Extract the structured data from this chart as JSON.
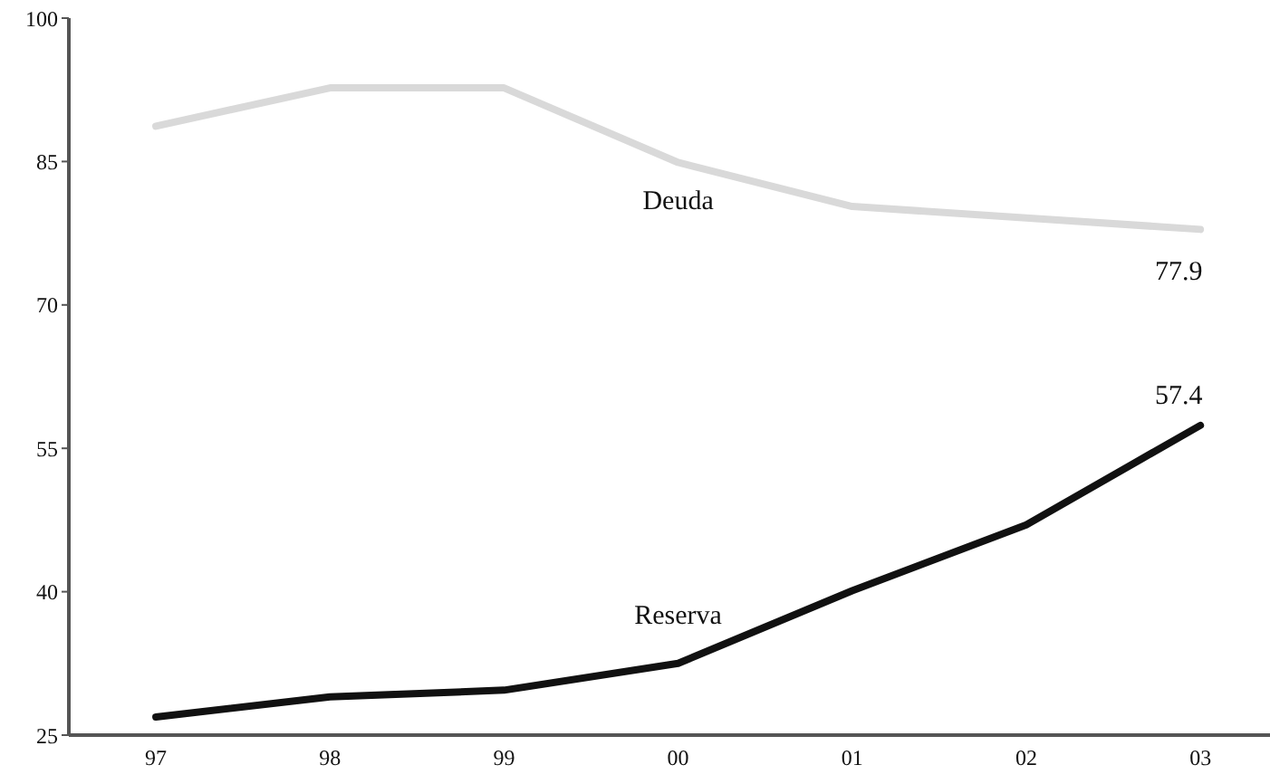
{
  "chart_data": {
    "type": "line",
    "categories": [
      "97",
      "98",
      "99",
      "00",
      "01",
      "02",
      "03"
    ],
    "series": [
      {
        "name": "Deuda",
        "color": "#d9d9d9",
        "values": [
          88.7,
          92.7,
          92.7,
          84.9,
          80.3,
          79.1,
          77.9
        ],
        "value_labels": [
          null,
          null,
          null,
          null,
          null,
          null,
          "77.9"
        ]
      },
      {
        "name": "Reserva",
        "color": "#111111",
        "values": [
          26.9,
          29.0,
          29.7,
          32.5,
          40.1,
          47.0,
          57.4
        ],
        "value_labels": [
          null,
          null,
          null,
          null,
          null,
          null,
          "57.4"
        ]
      }
    ],
    "ylim": [
      25,
      100
    ],
    "yticks": [
      25,
      40,
      55,
      70,
      85,
      100
    ],
    "marker": "none",
    "line_style": "solid"
  }
}
